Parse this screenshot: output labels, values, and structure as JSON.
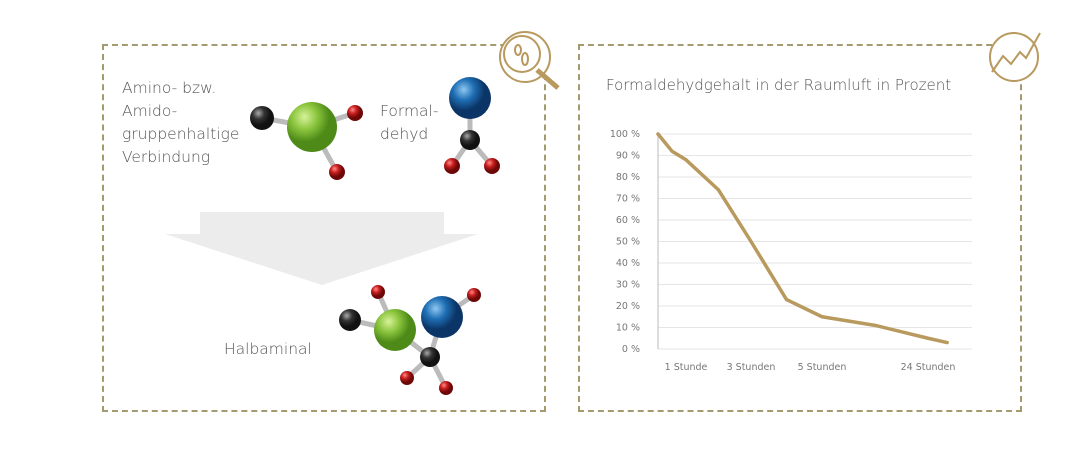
{
  "left": {
    "compound_label": [
      "Amino- bzw.",
      "Amido-",
      "gruppenhaltige",
      "Verbindung"
    ],
    "formaldehyde_label": [
      "Formal-",
      "dehyd"
    ],
    "product_label": "Halbaminal"
  },
  "icons": [
    "magnifier-bacteria-icon",
    "trend-chart-icon"
  ],
  "colors": {
    "accent": "#b8995e",
    "border": "#a39a6e",
    "green": "#8cc63f",
    "blue": "#1f6fb5",
    "red": "#c81e1e",
    "black": "#333333"
  },
  "chart_data": {
    "type": "line",
    "title": "Formaldehydgehalt in der Raumluft in Prozent",
    "categories": [
      "1 Stunde",
      "3 Stunden",
      "5 Stunden",
      "24 Stunden"
    ],
    "yticks": [
      "0 %",
      "10 %",
      "20 %",
      "30 %",
      "40 %",
      "50 %",
      "60 %",
      "70 %",
      "80 %",
      "90 %",
      "100 %"
    ],
    "ylim": [
      0,
      100
    ],
    "grid": true,
    "series": [
      {
        "points": [
          [
            0,
            100
          ],
          [
            0.5,
            92
          ],
          [
            1,
            88
          ],
          [
            1.5,
            74
          ],
          [
            2,
            50
          ],
          [
            2.5,
            23
          ],
          [
            3,
            15
          ],
          [
            3.5,
            11
          ],
          [
            4,
            5
          ],
          [
            4.3,
            3
          ]
        ]
      }
    ]
  }
}
